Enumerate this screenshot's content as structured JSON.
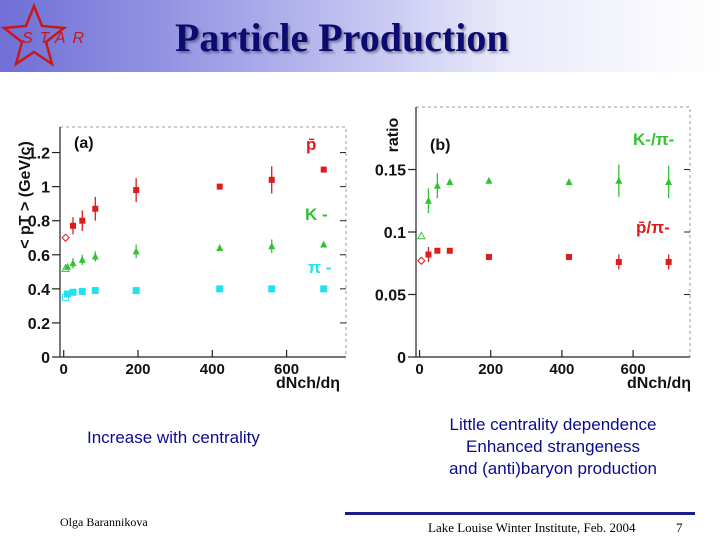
{
  "slide": {
    "logo_text": "STAR",
    "title": "Particle Production",
    "caption_left": "Increase with centrality",
    "caption_right": [
      "Little  centrality dependence",
      "Enhanced strangeness",
      "and (anti)baryon production"
    ],
    "author": "Olga Barannikova",
    "conference": "Lake Louise Winter Institute, Feb. 2004",
    "page": "7"
  },
  "colors": {
    "pbar": "#dd1c1c",
    "kminus": "#33c233",
    "piminus": "#22e2ee",
    "title": "#0b0b70",
    "caption": "#0b0b90"
  },
  "chart_data": [
    {
      "type": "scatter",
      "panel_label": "(a)",
      "ylabel": "< pT > (GeV/c)",
      "xlabel": "dNch/dη",
      "xlim": [
        -10,
        760
      ],
      "ylim": [
        0,
        1.35
      ],
      "xticks": [
        0,
        200,
        400,
        600
      ],
      "xtick_labels": [
        "0",
        "200",
        "400",
        "600"
      ],
      "yticks": [
        0,
        0.2,
        0.4,
        0.6,
        0.8,
        1,
        1.2
      ],
      "ytick_labels": [
        "0",
        "0.2",
        "0.4",
        "0.6",
        "0.8",
        "1",
        "1.2"
      ],
      "series": [
        {
          "name": "p̄",
          "color": "#dd1c1c",
          "marker": "square",
          "x": [
            25,
            50,
            85,
            195,
            420,
            560,
            700
          ],
          "y": [
            0.77,
            0.8,
            0.87,
            0.98,
            1.0,
            1.04,
            1.1
          ],
          "err": [
            0.05,
            0.06,
            0.07,
            0.07,
            0.0,
            0.08,
            0.0
          ]
        },
        {
          "name": "K -",
          "color": "#33c233",
          "marker": "triangle",
          "x": [
            10,
            25,
            50,
            85,
            195,
            420,
            560,
            700
          ],
          "y": [
            0.53,
            0.55,
            0.57,
            0.59,
            0.62,
            0.64,
            0.65,
            0.66
          ],
          "err": [
            0.0,
            0.03,
            0.03,
            0.03,
            0.04,
            0.0,
            0.04,
            0.0
          ]
        },
        {
          "name": "π -",
          "color": "#22e2ee",
          "marker": "square",
          "x": [
            10,
            25,
            50,
            85,
            195,
            420,
            560,
            700
          ],
          "y": [
            0.37,
            0.38,
            0.385,
            0.39,
            0.39,
            0.4,
            0.4,
            0.4
          ],
          "err": [
            0,
            0,
            0,
            0,
            0,
            0,
            0,
            0
          ]
        },
        {
          "name": "",
          "color": "#dd1c1c",
          "marker": "open-diamond",
          "x": [
            5
          ],
          "y": [
            0.7
          ],
          "err": [
            0
          ]
        },
        {
          "name": "",
          "color": "#33c233",
          "marker": "open-triangle",
          "x": [
            5
          ],
          "y": [
            0.52
          ],
          "err": [
            0
          ]
        },
        {
          "name": "",
          "color": "#22e2ee",
          "marker": "open-square",
          "x": [
            5
          ],
          "y": [
            0.35
          ],
          "err": [
            0
          ]
        }
      ]
    },
    {
      "type": "scatter",
      "panel_label": "(b)",
      "ylabel": "ratio",
      "xlabel": "dNch/dη",
      "xlim": [
        -10,
        760
      ],
      "ylim": [
        0,
        0.2
      ],
      "xticks": [
        0,
        200,
        400,
        600
      ],
      "xtick_labels": [
        "0",
        "200",
        "400",
        "600"
      ],
      "yticks": [
        0,
        0.05,
        0.1,
        0.15
      ],
      "ytick_labels": [
        "0",
        "0.05",
        "0.1",
        "0.15"
      ],
      "series": [
        {
          "name": "K-/π-",
          "color": "#33c233",
          "marker": "triangle",
          "x": [
            25,
            50,
            85,
            195,
            420,
            560,
            700
          ],
          "y": [
            0.125,
            0.137,
            0.14,
            0.141,
            0.14,
            0.141,
            0.14
          ],
          "err": [
            0.01,
            0.01,
            0.0,
            0.0,
            0.0,
            0.013,
            0.013
          ]
        },
        {
          "name": "p̄/π-",
          "color": "#dd1c1c",
          "marker": "square",
          "x": [
            25,
            50,
            85,
            195,
            420,
            560,
            700
          ],
          "y": [
            0.082,
            0.085,
            0.085,
            0.08,
            0.08,
            0.076,
            0.076
          ],
          "err": [
            0.006,
            0.0,
            0.0,
            0.0,
            0.0,
            0.006,
            0.006
          ]
        },
        {
          "name": "",
          "color": "#33c233",
          "marker": "open-triangle",
          "x": [
            5
          ],
          "y": [
            0.097
          ],
          "err": [
            0
          ]
        },
        {
          "name": "",
          "color": "#dd1c1c",
          "marker": "open-diamond",
          "x": [
            5
          ],
          "y": [
            0.077
          ],
          "err": [
            0
          ]
        }
      ]
    }
  ]
}
